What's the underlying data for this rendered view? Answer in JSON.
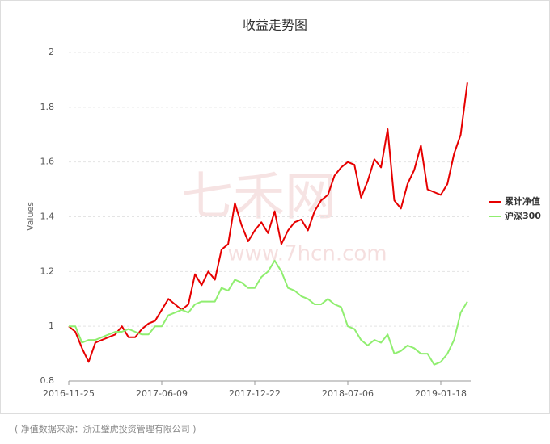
{
  "chart_data": {
    "type": "line",
    "title": "收益走势图",
    "y_label": "Values",
    "categories": [
      "2016-11-25",
      null,
      null,
      null,
      null,
      null,
      null,
      null,
      null,
      null,
      null,
      null,
      null,
      null,
      "2017-06-09",
      null,
      null,
      null,
      null,
      null,
      null,
      null,
      null,
      null,
      null,
      null,
      null,
      null,
      "2017-12-22",
      null,
      null,
      null,
      null,
      null,
      null,
      null,
      null,
      null,
      null,
      null,
      null,
      null,
      "2018-07-06",
      null,
      null,
      null,
      null,
      null,
      null,
      null,
      null,
      null,
      null,
      null,
      null,
      null,
      "2019-01-18",
      null,
      null,
      null,
      null
    ],
    "series": [
      {
        "name": "累计净值",
        "color": "#e60000",
        "values": [
          1.0,
          0.98,
          0.92,
          0.87,
          0.94,
          0.95,
          0.96,
          0.97,
          1.0,
          0.96,
          0.96,
          0.99,
          1.01,
          1.02,
          1.06,
          1.1,
          1.08,
          1.06,
          1.08,
          1.19,
          1.15,
          1.2,
          1.17,
          1.28,
          1.3,
          1.45,
          1.37,
          1.31,
          1.35,
          1.38,
          1.34,
          1.42,
          1.3,
          1.35,
          1.38,
          1.39,
          1.35,
          1.42,
          1.46,
          1.48,
          1.55,
          1.58,
          1.6,
          1.59,
          1.47,
          1.53,
          1.61,
          1.58,
          1.72,
          1.46,
          1.43,
          1.52,
          1.57,
          1.66,
          1.5,
          1.49,
          1.48,
          1.52,
          1.63,
          1.7,
          1.89
        ]
      },
      {
        "name": "沪深300",
        "color": "#90ee70",
        "values": [
          1.0,
          1.0,
          0.94,
          0.95,
          0.95,
          0.96,
          0.97,
          0.98,
          0.98,
          0.99,
          0.98,
          0.97,
          0.97,
          1.0,
          1.0,
          1.04,
          1.05,
          1.06,
          1.05,
          1.08,
          1.09,
          1.09,
          1.09,
          1.14,
          1.13,
          1.17,
          1.16,
          1.14,
          1.14,
          1.18,
          1.2,
          1.24,
          1.2,
          1.14,
          1.13,
          1.11,
          1.1,
          1.08,
          1.08,
          1.1,
          1.08,
          1.07,
          1.0,
          0.99,
          0.95,
          0.93,
          0.95,
          0.94,
          0.97,
          0.9,
          0.91,
          0.93,
          0.92,
          0.9,
          0.9,
          0.86,
          0.87,
          0.9,
          0.95,
          1.05,
          1.09
        ]
      }
    ],
    "ylim": [
      0.8,
      2
    ],
    "yticks": [
      0.8,
      1,
      1.2,
      1.4,
      1.6,
      1.8,
      2
    ],
    "grid": true,
    "legend": "right",
    "watermark": [
      "七禾网",
      "www.7hcn.com"
    ],
    "footnote": "( 净值数据来源：浙江璧虎投资管理有限公司 )"
  }
}
